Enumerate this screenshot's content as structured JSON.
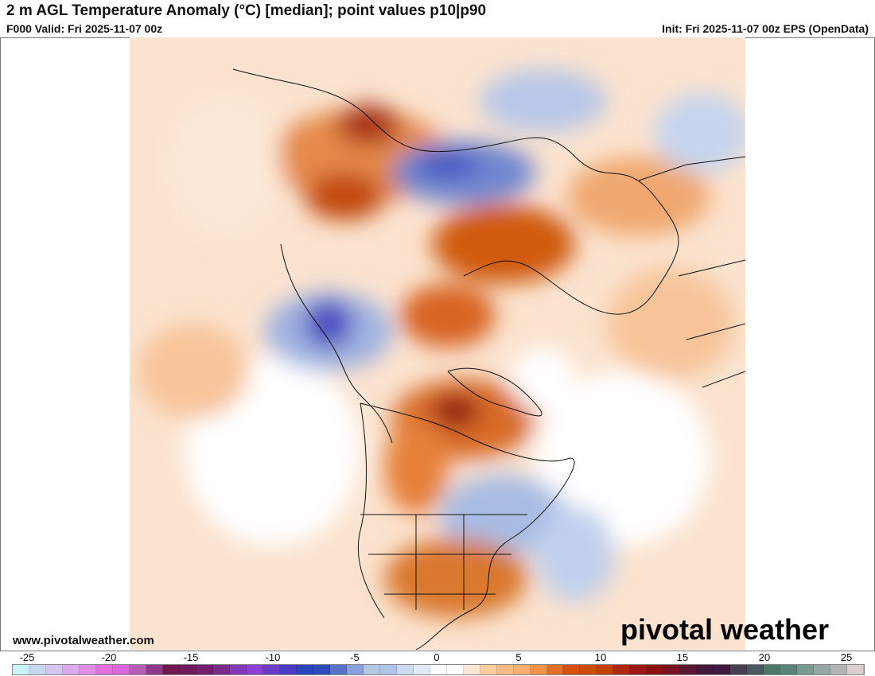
{
  "header": {
    "title": "2 m AGL Temperature Anomaly (°C) [median]; point values p10|p90",
    "valid": "F000 Valid: Fri 2025-11-07 00z",
    "init": "Init: Fri 2025-11-07 00z EPS (OpenData)"
  },
  "footer": {
    "website": "www.pivotalweather.com",
    "logo_text": "pivotal weather"
  },
  "colorbar": {
    "unit": "°C",
    "ticks": [
      -25,
      -20,
      -15,
      -10,
      -5,
      0,
      5,
      10,
      15,
      20,
      25
    ],
    "min": -25,
    "max": 25,
    "colors": [
      "#c8f4fa",
      "#c9d6f2",
      "#d4c6f0",
      "#dcaaec",
      "#e08fe8",
      "#e070e0",
      "#d968dc",
      "#b85cb8",
      "#8e3a8a",
      "#6e1a50",
      "#701c5c",
      "#74206e",
      "#7a2c8c",
      "#8438b4",
      "#8c40d4",
      "#6a3ccc",
      "#4a3cc4",
      "#2a44bc",
      "#2e4cb8",
      "#5874c8",
      "#8aa0dc",
      "#b4c8e4",
      "#b0c4e6",
      "#cbdaee",
      "#e0eaf6",
      "#ffffff",
      "#ffffff",
      "#fde6d4",
      "#fbcc9c",
      "#f8bc88",
      "#f8b070",
      "#f09448",
      "#e07028",
      "#d65006",
      "#cc4c00",
      "#c24000",
      "#b02810",
      "#9c1818",
      "#8c1010",
      "#741420",
      "#5a1830",
      "#44183a",
      "#3e1a40",
      "#484050",
      "#4a5860",
      "#4e7868",
      "#5a8478",
      "#7a9c90",
      "#96a8a4",
      "#b4b4b4",
      "#dcd0cc"
    ]
  }
}
